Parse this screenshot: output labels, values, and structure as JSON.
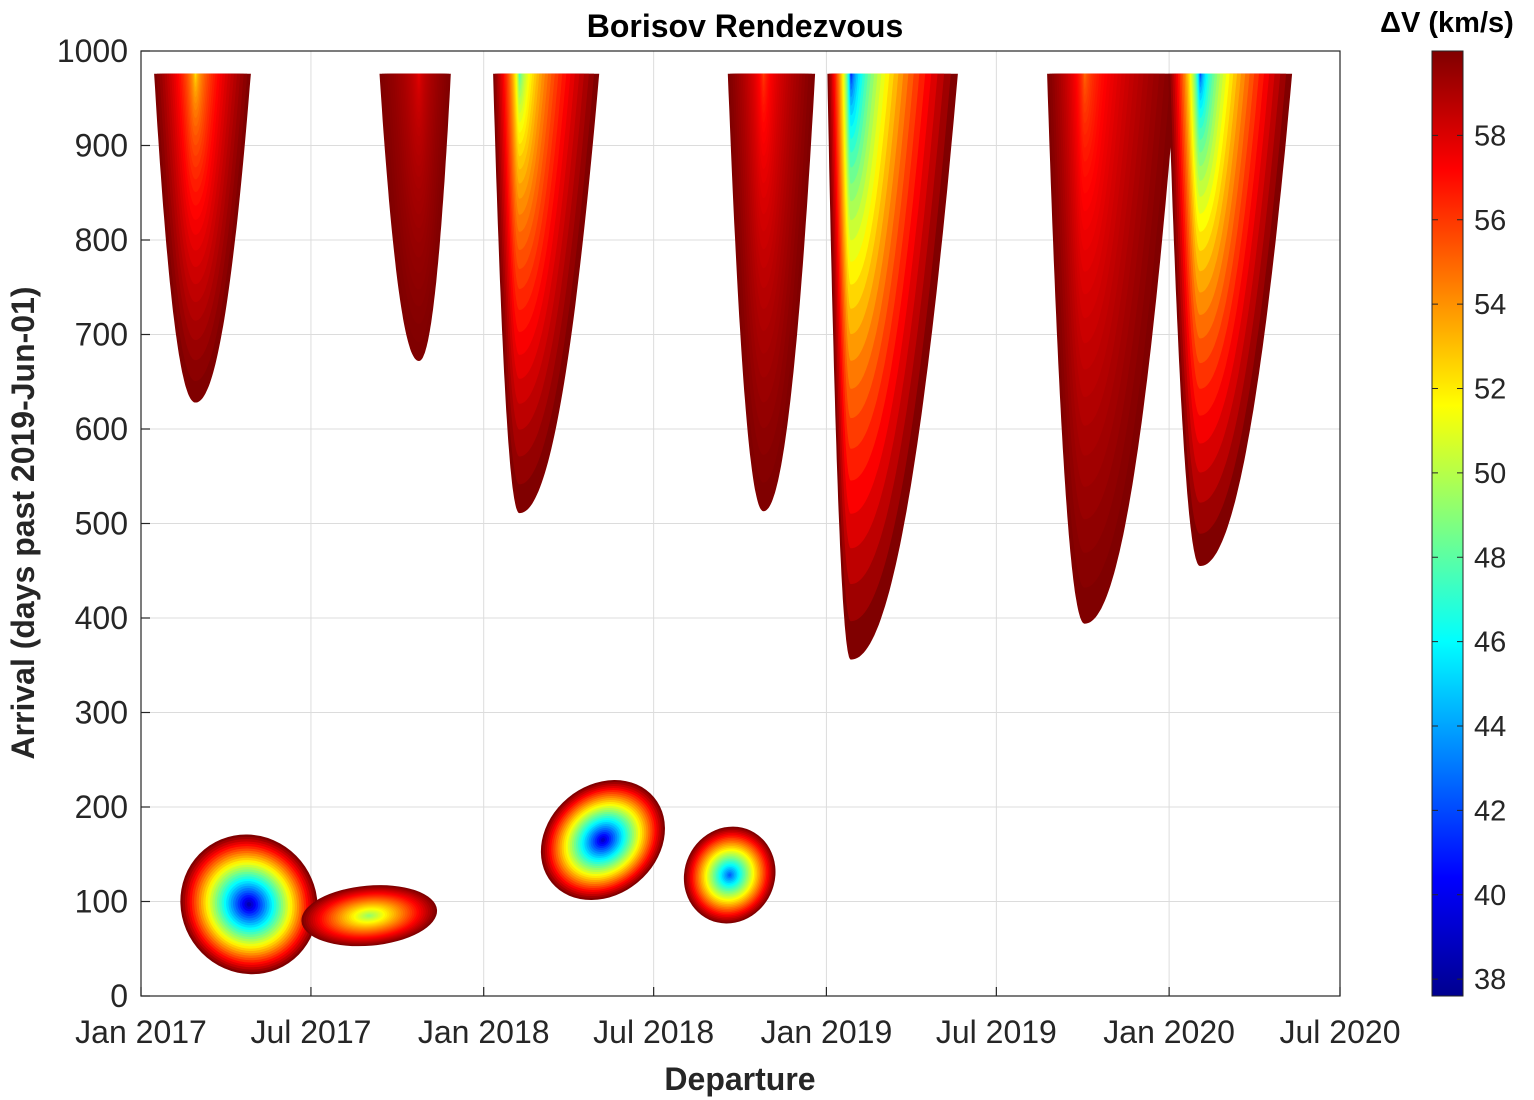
{
  "chart_data": {
    "type": "heatmap",
    "subtype": "porkchop-contour",
    "title": "Borisov Rendezvous",
    "xlabel": "Departure",
    "ylabel": "Arrival (days past 2019-Jun-01)",
    "x_ticks": [
      "Jan 2017",
      "Jul 2017",
      "Jan 2018",
      "Jul 2018",
      "Jan 2019",
      "Jul 2019",
      "Jan 2020",
      "Jul 2020"
    ],
    "x_tick_values": [
      "2017-01-01",
      "2017-07-01",
      "2018-01-01",
      "2018-07-01",
      "2019-01-01",
      "2019-07-01",
      "2020-01-01",
      "2020-07-01"
    ],
    "xlim": [
      "2017-01-01",
      "2020-07-01"
    ],
    "y_ticks": [
      0,
      100,
      200,
      300,
      400,
      500,
      600,
      700,
      800,
      900,
      1000
    ],
    "ylim": [
      0,
      1000
    ],
    "grid": true,
    "colorbar": {
      "title": "ΔV (km/s)",
      "range": [
        37.6,
        60
      ],
      "ticks": [
        38,
        40,
        42,
        44,
        46,
        48,
        50,
        52,
        54,
        56,
        58
      ],
      "colormap": "jet",
      "position": "right"
    },
    "regions": [
      {
        "kind": "u",
        "departure_start": "2017-01-15",
        "departure_end": "2017-04-28",
        "min_departure": "2017-02-28",
        "arrival_min": 628,
        "arrival_max": 976,
        "dv_min": 51.5,
        "dv_edge": 60
      },
      {
        "kind": "u",
        "departure_start": "2017-09-12",
        "departure_end": "2017-11-27",
        "min_departure": "2017-10-24",
        "arrival_min": 672,
        "arrival_max": 976,
        "dv_min": 57.5,
        "dv_edge": 60
      },
      {
        "kind": "u",
        "departure_start": "2018-01-11",
        "departure_end": "2018-05-04",
        "min_departure": "2018-02-08",
        "arrival_min": 511,
        "arrival_max": 976,
        "dv_min": 46.5,
        "dv_edge": 60
      },
      {
        "kind": "u",
        "departure_start": "2018-09-18",
        "departure_end": "2018-12-20",
        "min_departure": "2018-10-26",
        "arrival_min": 513,
        "arrival_max": 976,
        "dv_min": 55.5,
        "dv_edge": 60
      },
      {
        "kind": "u",
        "departure_start": "2019-01-02",
        "departure_end": "2019-05-21",
        "min_departure": "2019-01-27",
        "arrival_min": 356,
        "arrival_max": 976,
        "dv_min": 39.5,
        "dv_edge": 60
      },
      {
        "kind": "u",
        "departure_start": "2019-08-24",
        "departure_end": "2020-01-09",
        "min_departure": "2019-10-03",
        "arrival_min": 394,
        "arrival_max": 976,
        "dv_min": 54.5,
        "dv_edge": 60
      },
      {
        "kind": "u",
        "departure_start": "2019-12-31",
        "departure_end": "2020-05-11",
        "min_departure": "2020-02-03",
        "arrival_min": 455,
        "arrival_max": 976,
        "dv_min": 40.5,
        "dv_edge": 60
      },
      {
        "kind": "lobe",
        "departure": "2017-04-26",
        "arrival": 97,
        "rotation": -34,
        "semi_days": 72,
        "semi_arrival": 75,
        "dv_min": 38,
        "dv_edge": 60
      },
      {
        "kind": "lobe",
        "departure": "2017-09-01",
        "arrival": 85,
        "rotation": 85,
        "semi_days": 32,
        "semi_arrival": 72,
        "dv_min": 49,
        "dv_edge": 60
      },
      {
        "kind": "lobe",
        "departure": "2018-05-08",
        "arrival": 165,
        "rotation": -40,
        "semi_days": 71,
        "semi_arrival": 58,
        "dv_min": 38.5,
        "dv_edge": 60
      },
      {
        "kind": "lobe",
        "departure": "2018-09-20",
        "arrival": 128,
        "rotation": 25,
        "semi_days": 48,
        "semi_arrival": 52,
        "dv_min": 42,
        "dv_edge": 60
      }
    ]
  }
}
